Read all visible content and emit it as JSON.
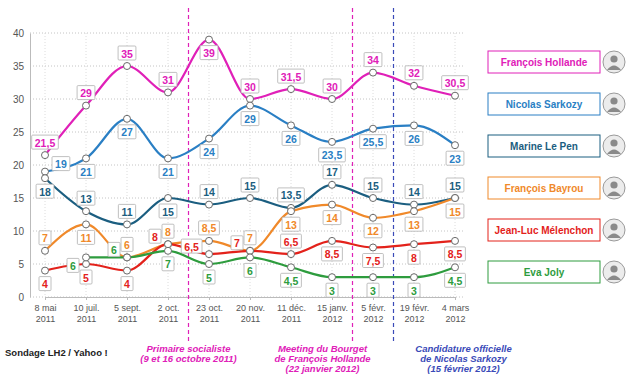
{
  "chart_data": {
    "type": "line",
    "source": "Sondage LH2 / Yahoo !",
    "categories": [
      "8 mai 2011",
      "10 juil. 2011",
      "5 sept. 2011",
      "2 oct. 2011",
      "23 oct. 2011",
      "20 nov. 2011",
      "11 déc. 2011",
      "15 janv. 2012",
      "5 févr. 2012",
      "19 févr. 2012",
      "4 mars 2012"
    ],
    "ylim": [
      0,
      40
    ],
    "yticks": [
      0,
      5,
      10,
      15,
      20,
      25,
      30,
      35,
      40
    ],
    "grid": true,
    "legend": "right",
    "data_labels": true,
    "marker": "circle",
    "line_style": "solid",
    "series": [
      {
        "name": "François Hollande",
        "color": "#e020b8",
        "values": [
          21.5,
          29,
          35,
          31,
          39,
          30,
          31.5,
          30,
          34,
          32,
          30.5
        ],
        "value_labels": [
          "21,5",
          "29",
          "35",
          "31",
          "39",
          "30",
          "31,5",
          "30",
          "34",
          "32",
          "30,5"
        ]
      },
      {
        "name": "Nicolas Sarkozy",
        "color": "#2a7fc4",
        "values": [
          19,
          21,
          27,
          21,
          24,
          29,
          26,
          23.5,
          25.5,
          26,
          23
        ],
        "value_labels": [
          "19",
          "21",
          "27",
          "21",
          "24",
          "29",
          "26",
          "23,5",
          "25,5",
          "26",
          "23"
        ]
      },
      {
        "name": "Marine Le Pen",
        "color": "#1b5e80",
        "values": [
          18,
          13,
          11,
          15,
          14,
          15,
          13.5,
          17,
          15,
          14,
          15
        ],
        "value_labels": [
          "18",
          "13",
          "11",
          "15",
          "14",
          "15",
          "13,5",
          "17",
          "15",
          "14",
          "15"
        ]
      },
      {
        "name": "François Bayrou",
        "color": "#f0892a",
        "values": [
          7,
          11,
          6,
          8,
          8.5,
          7,
          13,
          14,
          12,
          13,
          15
        ],
        "value_labels": [
          "7",
          "11",
          "6",
          "8",
          "8,5",
          "7",
          "13",
          "14",
          "12",
          "13",
          "15"
        ]
      },
      {
        "name": "Jean-Luc Mélenchon",
        "color": "#e3221b",
        "values": [
          4,
          5,
          4,
          8,
          6.5,
          7,
          6.5,
          8.5,
          7.5,
          8,
          8.5
        ],
        "value_labels": [
          "4",
          "5",
          "4",
          "8",
          "6,5",
          "7",
          "6,5",
          "8,5",
          "7,5",
          "8",
          "8,5"
        ]
      },
      {
        "name": "Eva Joly",
        "color": "#2e9c3e",
        "values": [
          null,
          6,
          6,
          7,
          5,
          6,
          4.5,
          3,
          3,
          3,
          4.5
        ],
        "value_labels": [
          null,
          "6",
          "6",
          "7",
          "5",
          "6",
          "4,5",
          "3",
          "3",
          "3",
          "4,5"
        ]
      }
    ],
    "annotations": [
      {
        "text": [
          "Primaire socialiste",
          "(9 et 16 octobre 2011)"
        ],
        "color": "#e020b8"
      },
      {
        "text": [
          "Meeting du Bourget",
          "de François Hollande",
          "(22 janvier 2012)"
        ],
        "color": "#e020b8"
      },
      {
        "text": [
          "Candidature officielle",
          "de Nicolas Sarkozy",
          "(15 février 2012)"
        ],
        "color": "#3a4ab8"
      }
    ]
  }
}
